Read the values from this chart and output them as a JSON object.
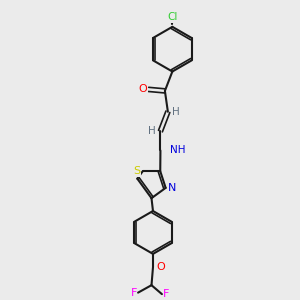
{
  "background_color": "#ebebeb",
  "bond_color": "#1a1a1a",
  "colors": {
    "O": "#ff0000",
    "N": "#0000dd",
    "S": "#cccc00",
    "Cl": "#33cc33",
    "F": "#ff00ff",
    "C": "#000000",
    "H": "#607080"
  },
  "lw": 1.5,
  "lw2": 1.2
}
